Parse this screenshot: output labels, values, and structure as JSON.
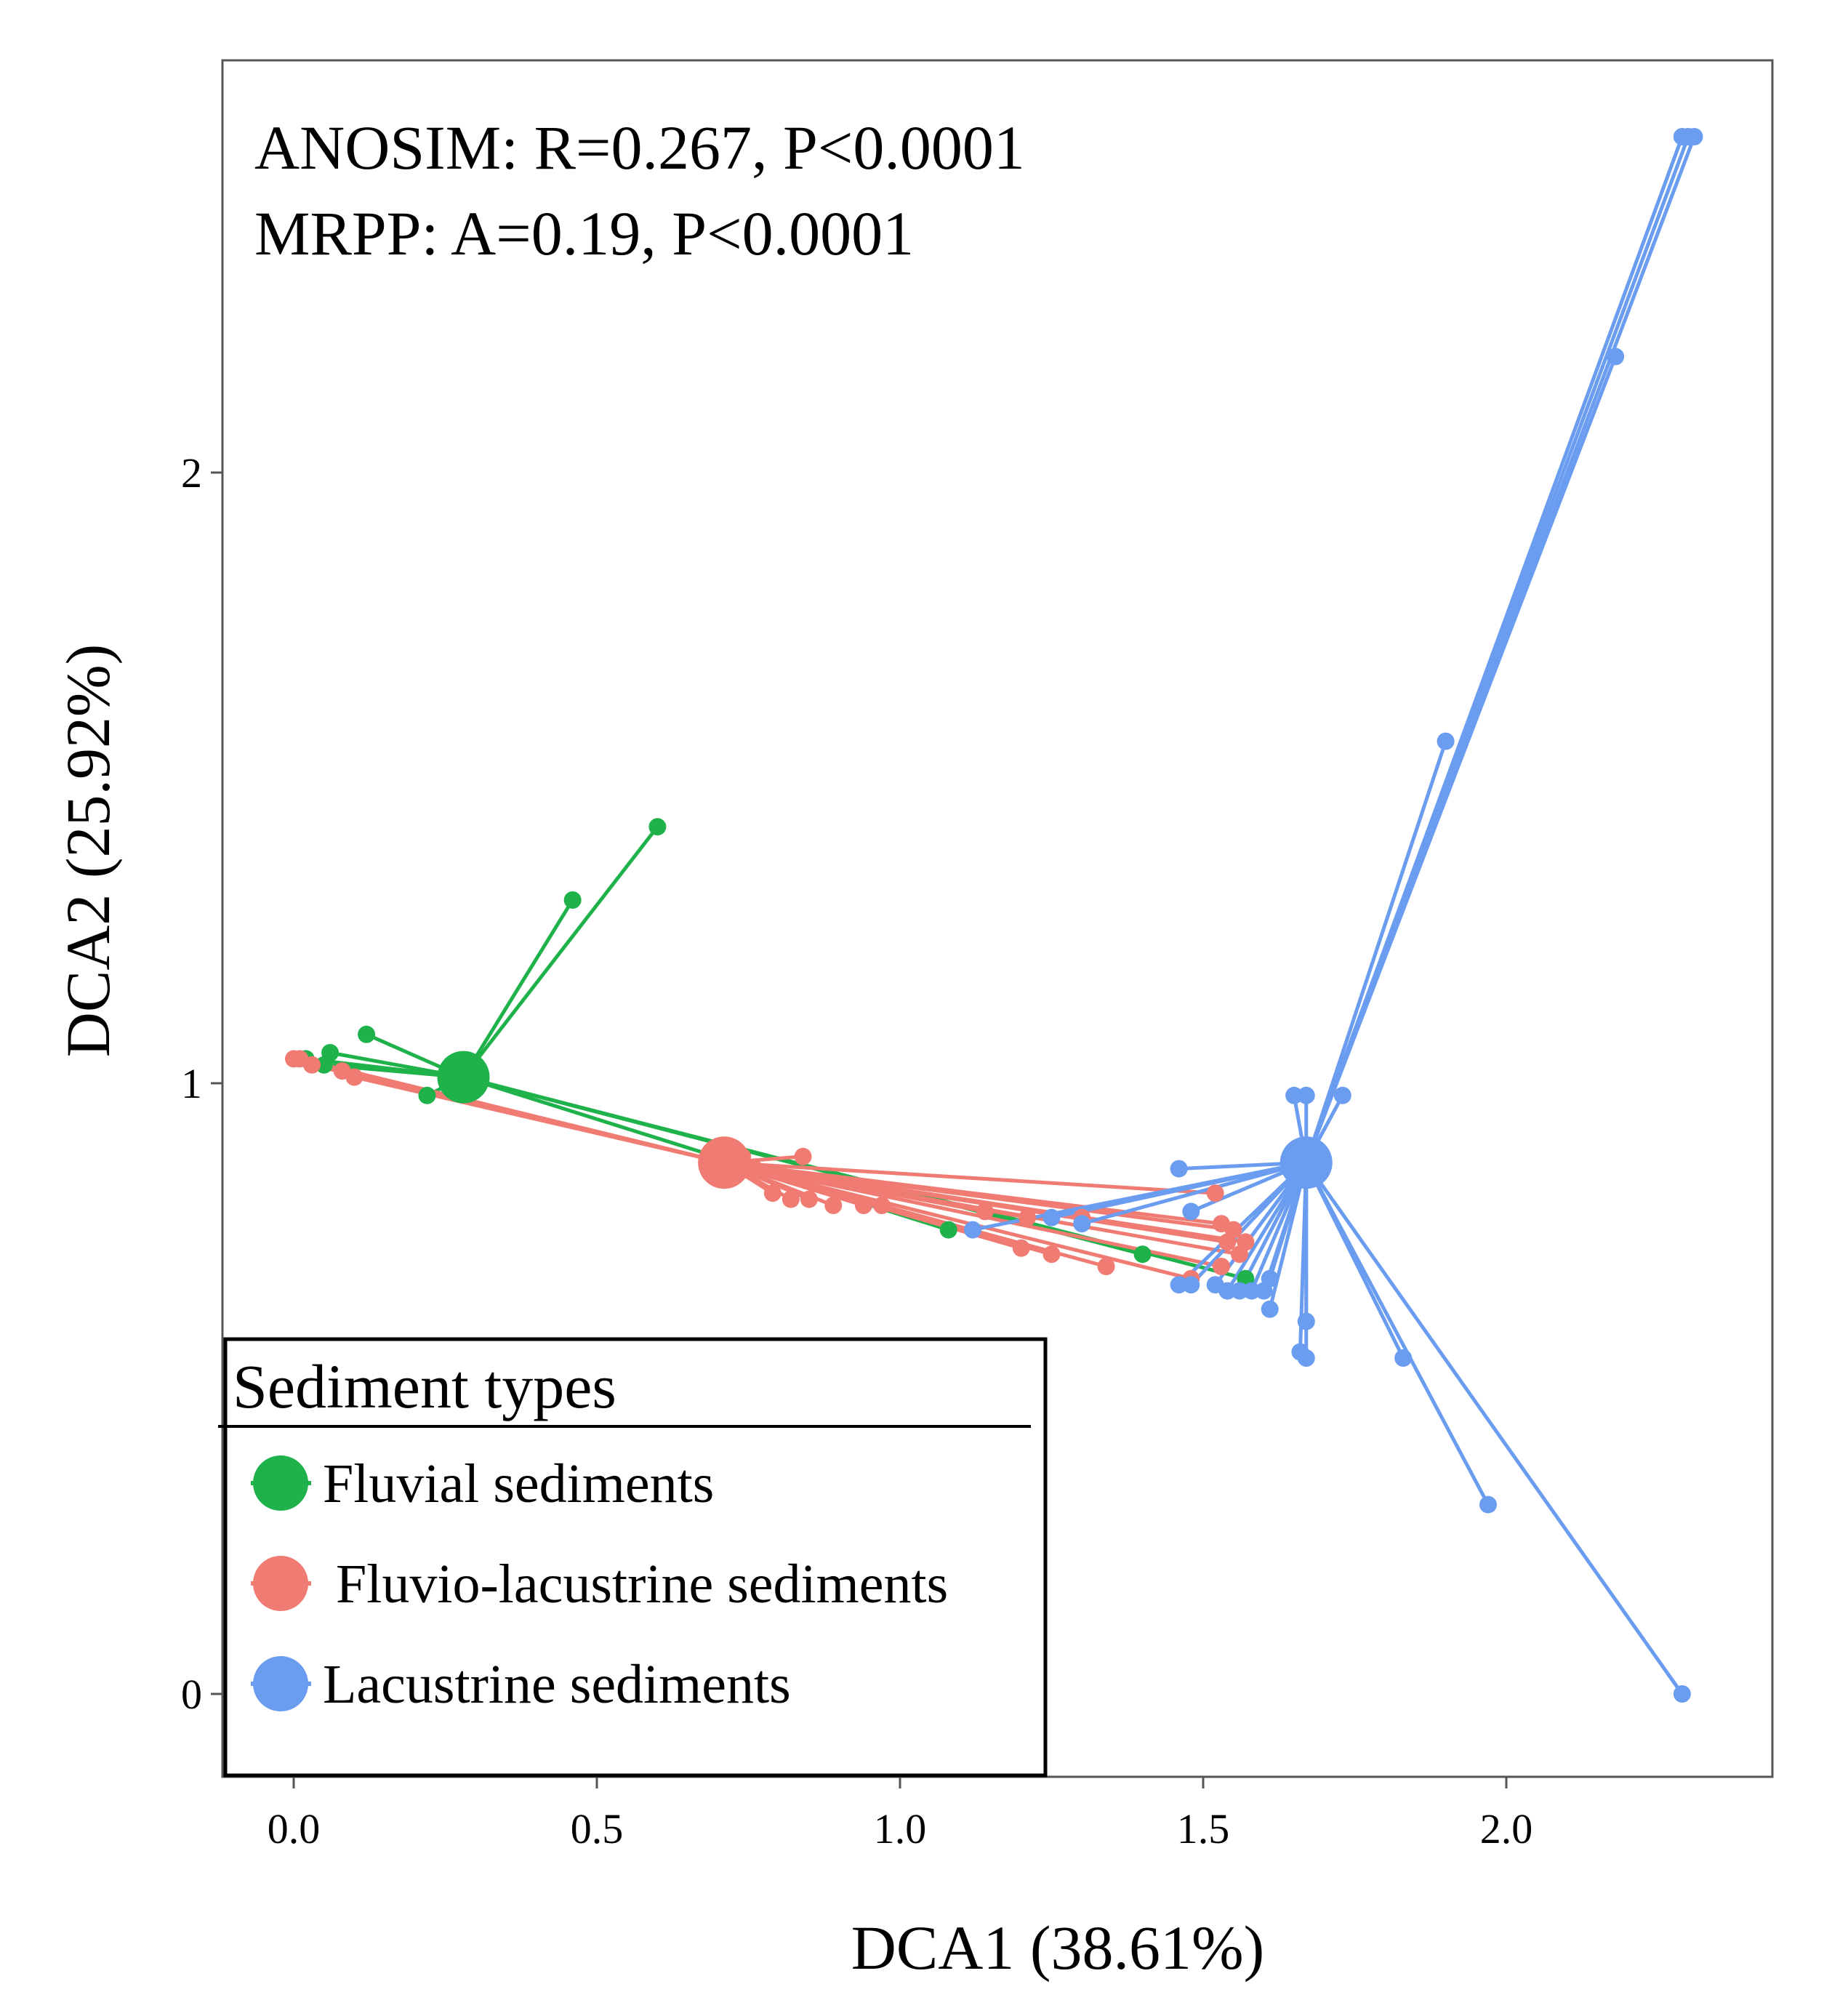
{
  "chart_data": {
    "type": "scatter",
    "subtype": "spider-ordination",
    "xlabel": "DCA1 (38.61%)",
    "ylabel": "DCA2 (25.92%)",
    "xlim": [
      -0.12,
      2.43
    ],
    "ylim": [
      -0.12,
      2.7
    ],
    "x_ticks": [
      0.0,
      0.5,
      1.0,
      1.5,
      2.0
    ],
    "x_tick_labels": [
      "0.0",
      "0.5",
      "1.0",
      "1.5",
      "2.0"
    ],
    "y_ticks": [
      0,
      1,
      2
    ],
    "y_tick_labels": [
      "0",
      "1",
      "2"
    ],
    "grid": false,
    "annotations": [
      "ANOSIM: R=0.267, P<0.0001",
      "MRPP: A=0.19, P<0.0001"
    ],
    "legend": {
      "title": "Sediment  types",
      "position": "bottom-left"
    },
    "series": [
      {
        "name": "Fluvial sediments",
        "color": "#1fb24a",
        "centroid": [
          0.28,
          1.01
        ],
        "points": [
          [
            0.6,
            1.42
          ],
          [
            0.46,
            1.3
          ],
          [
            0.12,
            1.08
          ],
          [
            0.06,
            1.05
          ],
          [
            0.05,
            1.03
          ],
          [
            0.02,
            1.04
          ],
          [
            0.22,
            0.98
          ],
          [
            1.08,
            0.76
          ],
          [
            1.4,
            0.72
          ],
          [
            1.57,
            0.68
          ]
        ]
      },
      {
        "name": "Fluvio-lacustrine sediments",
        "color": "#f07b72",
        "centroid": [
          0.71,
          0.87
        ],
        "points": [
          [
            0.0,
            1.04
          ],
          [
            0.01,
            1.04
          ],
          [
            0.03,
            1.03
          ],
          [
            0.08,
            1.02
          ],
          [
            0.1,
            1.01
          ],
          [
            0.74,
            0.88
          ],
          [
            0.76,
            0.86
          ],
          [
            0.84,
            0.88
          ],
          [
            0.79,
            0.82
          ],
          [
            0.82,
            0.81
          ],
          [
            0.85,
            0.81
          ],
          [
            0.89,
            0.8
          ],
          [
            0.94,
            0.8
          ],
          [
            0.97,
            0.8
          ],
          [
            1.14,
            0.79
          ],
          [
            1.21,
            0.78
          ],
          [
            1.3,
            0.78
          ],
          [
            1.52,
            0.82
          ],
          [
            1.53,
            0.77
          ],
          [
            1.55,
            0.76
          ],
          [
            1.57,
            0.74
          ],
          [
            1.56,
            0.72
          ],
          [
            1.2,
            0.73
          ],
          [
            1.25,
            0.72
          ],
          [
            1.34,
            0.7
          ],
          [
            1.48,
            0.68
          ],
          [
            1.53,
            0.7
          ],
          [
            1.54,
            0.74
          ]
        ]
      },
      {
        "name": "Lacustrine sediments",
        "color": "#6a9cf0",
        "centroid": [
          1.67,
          0.87
        ],
        "points": [
          [
            2.29,
            2.55
          ],
          [
            2.3,
            2.55
          ],
          [
            2.31,
            2.55
          ],
          [
            2.18,
            2.19
          ],
          [
            1.9,
            1.56
          ],
          [
            1.67,
            0.98
          ],
          [
            1.65,
            0.98
          ],
          [
            1.73,
            0.98
          ],
          [
            1.46,
            0.86
          ],
          [
            1.25,
            0.78
          ],
          [
            1.3,
            0.77
          ],
          [
            1.48,
            0.79
          ],
          [
            1.12,
            0.76
          ],
          [
            1.46,
            0.67
          ],
          [
            1.48,
            0.67
          ],
          [
            1.52,
            0.67
          ],
          [
            1.54,
            0.66
          ],
          [
            1.56,
            0.66
          ],
          [
            1.58,
            0.66
          ],
          [
            1.6,
            0.66
          ],
          [
            1.61,
            0.68
          ],
          [
            1.61,
            0.63
          ],
          [
            1.67,
            0.61
          ],
          [
            1.66,
            0.56
          ],
          [
            1.67,
            0.55
          ],
          [
            1.83,
            0.55
          ],
          [
            1.97,
            0.31
          ],
          [
            2.29,
            0.0
          ]
        ]
      }
    ]
  }
}
